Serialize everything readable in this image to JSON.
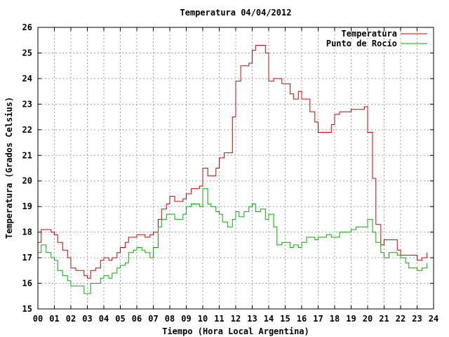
{
  "chart_data": {
    "type": "line",
    "title": "Temperatura 04/04/2012",
    "xlabel": "Tiempo (Hora Local Argentina)",
    "ylabel": "Temperatura (Grados Celsius)",
    "xlim": [
      0,
      24
    ],
    "ylim": [
      15,
      26
    ],
    "grid": true,
    "legend_position": "top-right",
    "x_ticks": [
      "00",
      "01",
      "02",
      "03",
      "04",
      "05",
      "06",
      "07",
      "08",
      "09",
      "10",
      "11",
      "12",
      "13",
      "14",
      "15",
      "16",
      "17",
      "18",
      "19",
      "20",
      "21",
      "22",
      "23",
      "24"
    ],
    "y_ticks": [
      "15",
      "16",
      "17",
      "18",
      "19",
      "20",
      "21",
      "22",
      "23",
      "24",
      "25",
      "26"
    ],
    "series": [
      {
        "name": "Temperatura",
        "color": "#d40000",
        "x": [
          0.0,
          0.2,
          0.5,
          0.8,
          1.0,
          1.2,
          1.5,
          1.8,
          2.0,
          2.3,
          2.5,
          2.8,
          3.0,
          3.2,
          3.5,
          3.8,
          4.0,
          4.3,
          4.5,
          4.8,
          5.0,
          5.3,
          5.5,
          5.8,
          6.0,
          6.3,
          6.5,
          6.8,
          7.0,
          7.3,
          7.5,
          7.8,
          8.0,
          8.3,
          8.5,
          8.8,
          9.0,
          9.3,
          9.5,
          9.8,
          10.0,
          10.3,
          10.5,
          10.8,
          11.0,
          11.3,
          11.5,
          11.8,
          12.0,
          12.3,
          12.5,
          12.8,
          13.0,
          13.2,
          13.5,
          13.8,
          14.0,
          14.3,
          14.5,
          14.8,
          15.0,
          15.3,
          15.5,
          15.8,
          16.0,
          16.3,
          16.5,
          16.8,
          17.0,
          17.3,
          17.5,
          17.8,
          18.0,
          18.3,
          18.5,
          18.8,
          19.0,
          19.3,
          19.5,
          19.8,
          20.0,
          20.3,
          20.5,
          20.8,
          21.0,
          21.3,
          21.5,
          21.8,
          22.0,
          22.3,
          22.5,
          22.8,
          23.0,
          23.3,
          23.6
        ],
        "values": [
          17.6,
          18.1,
          18.1,
          18.0,
          17.9,
          17.6,
          17.3,
          17.0,
          16.6,
          16.5,
          16.5,
          16.3,
          16.2,
          16.5,
          16.6,
          16.9,
          17.0,
          16.9,
          17.0,
          17.2,
          17.4,
          17.6,
          17.8,
          17.8,
          17.9,
          17.9,
          17.8,
          17.9,
          18.0,
          18.5,
          18.9,
          19.1,
          19.4,
          19.2,
          19.2,
          19.3,
          19.5,
          19.7,
          19.7,
          19.8,
          20.5,
          20.2,
          20.2,
          20.5,
          20.9,
          21.1,
          21.1,
          22.5,
          23.9,
          24.5,
          24.5,
          24.6,
          25.1,
          25.3,
          25.3,
          25.0,
          23.9,
          24.0,
          24.0,
          23.8,
          23.8,
          23.4,
          23.2,
          23.5,
          23.2,
          23.2,
          22.7,
          22.3,
          21.9,
          21.9,
          21.9,
          22.2,
          22.6,
          22.7,
          22.7,
          22.7,
          22.8,
          22.8,
          22.8,
          22.9,
          21.9,
          20.1,
          18.3,
          17.5,
          17.7,
          17.7,
          17.7,
          17.3,
          17.1,
          17.1,
          17.1,
          17.1,
          16.9,
          17.0,
          17.2
        ]
      },
      {
        "name": "Punto de Rocío",
        "color": "#00b000",
        "x": [
          0.0,
          0.2,
          0.5,
          0.8,
          1.0,
          1.2,
          1.5,
          1.8,
          2.0,
          2.3,
          2.5,
          2.8,
          3.0,
          3.2,
          3.5,
          3.8,
          4.0,
          4.3,
          4.5,
          4.8,
          5.0,
          5.3,
          5.5,
          5.8,
          6.0,
          6.3,
          6.5,
          6.8,
          7.0,
          7.3,
          7.5,
          7.8,
          8.0,
          8.3,
          8.5,
          8.8,
          9.0,
          9.3,
          9.5,
          9.8,
          10.0,
          10.3,
          10.5,
          10.8,
          11.0,
          11.2,
          11.5,
          11.8,
          12.0,
          12.2,
          12.5,
          12.8,
          13.0,
          13.2,
          13.5,
          13.8,
          14.0,
          14.3,
          14.5,
          14.8,
          15.0,
          15.3,
          15.5,
          15.8,
          16.0,
          16.3,
          16.5,
          16.8,
          17.0,
          17.3,
          17.5,
          17.8,
          18.0,
          18.3,
          18.5,
          18.8,
          19.0,
          19.3,
          19.5,
          19.8,
          20.0,
          20.3,
          20.5,
          20.8,
          21.0,
          21.3,
          21.5,
          21.8,
          22.0,
          22.3,
          22.5,
          22.8,
          23.0,
          23.3,
          23.6
        ],
        "values": [
          17.2,
          17.5,
          17.2,
          17.0,
          16.9,
          16.5,
          16.3,
          16.1,
          15.9,
          15.9,
          15.9,
          15.6,
          15.6,
          16.0,
          16.0,
          16.2,
          16.3,
          16.2,
          16.4,
          16.6,
          16.7,
          16.8,
          17.2,
          17.3,
          17.4,
          17.3,
          17.2,
          17.0,
          17.4,
          18.2,
          18.5,
          18.7,
          18.7,
          18.5,
          18.5,
          18.7,
          19.0,
          19.1,
          19.1,
          19.0,
          19.7,
          19.1,
          19.0,
          18.8,
          18.7,
          18.4,
          18.2,
          18.5,
          18.8,
          18.6,
          18.8,
          19.0,
          19.1,
          18.8,
          18.9,
          18.5,
          18.7,
          18.2,
          17.5,
          17.6,
          17.6,
          17.4,
          17.5,
          17.4,
          17.6,
          17.8,
          17.8,
          17.7,
          17.8,
          17.8,
          17.9,
          17.8,
          17.8,
          18.0,
          18.0,
          18.0,
          18.1,
          18.2,
          18.2,
          18.2,
          18.5,
          18.0,
          17.6,
          17.2,
          17.0,
          17.2,
          17.2,
          17.1,
          17.0,
          16.8,
          16.6,
          16.6,
          16.5,
          16.6,
          16.8
        ]
      }
    ]
  }
}
